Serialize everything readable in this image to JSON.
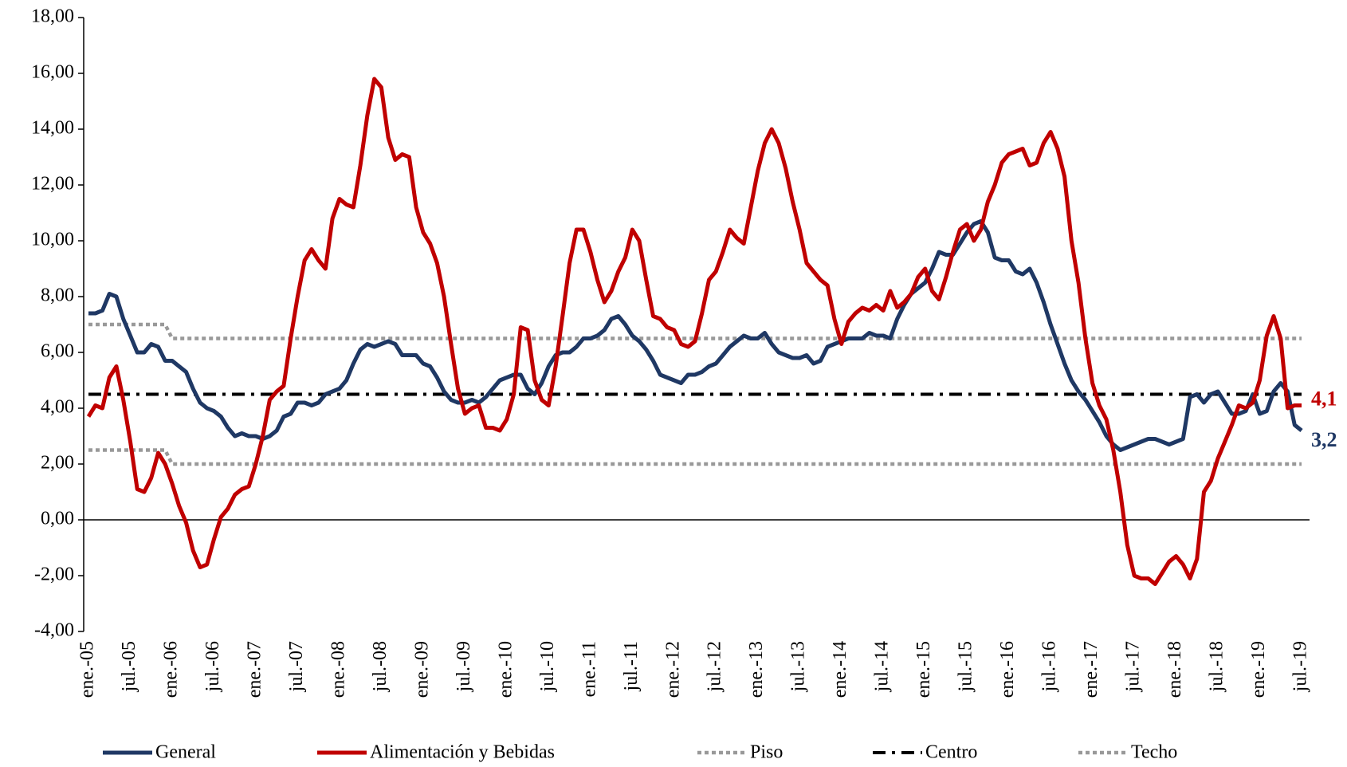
{
  "chart_data": {
    "type": "line",
    "categories": [
      "ene.-05",
      null,
      null,
      null,
      null,
      null,
      "jul.-05",
      null,
      null,
      null,
      null,
      null,
      "ene.-06",
      null,
      null,
      null,
      null,
      null,
      "jul.-06",
      null,
      null,
      null,
      null,
      null,
      "ene.-07",
      null,
      null,
      null,
      null,
      null,
      "jul.-07",
      null,
      null,
      null,
      null,
      null,
      "ene.-08",
      null,
      null,
      null,
      null,
      null,
      "jul.-08",
      null,
      null,
      null,
      null,
      null,
      "ene.-09",
      null,
      null,
      null,
      null,
      null,
      "jul.-09",
      null,
      null,
      null,
      null,
      null,
      "ene.-10",
      null,
      null,
      null,
      null,
      null,
      "jul.-10",
      null,
      null,
      null,
      null,
      null,
      "ene.-11",
      null,
      null,
      null,
      null,
      null,
      "jul.-11",
      null,
      null,
      null,
      null,
      null,
      "ene.-12",
      null,
      null,
      null,
      null,
      null,
      "jul.-12",
      null,
      null,
      null,
      null,
      null,
      "ene.-13",
      null,
      null,
      null,
      null,
      null,
      "jul.-13",
      null,
      null,
      null,
      null,
      null,
      "ene.-14",
      null,
      null,
      null,
      null,
      null,
      "jul.-14",
      null,
      null,
      null,
      null,
      null,
      "ene.-15",
      null,
      null,
      null,
      null,
      null,
      "jul.-15",
      null,
      null,
      null,
      null,
      null,
      "ene.-16",
      null,
      null,
      null,
      null,
      null,
      "jul.-16",
      null,
      null,
      null,
      null,
      null,
      "ene.-17",
      null,
      null,
      null,
      null,
      null,
      "jul.-17",
      null,
      null,
      null,
      null,
      null,
      "ene.-18",
      null,
      null,
      null,
      null,
      null,
      "jul.-18",
      null,
      null,
      null,
      null,
      null,
      "ene.-19",
      null,
      null,
      null,
      null,
      null,
      "jul.-19"
    ],
    "series": [
      {
        "name": "General",
        "color": "#1f3864",
        "style": "solid",
        "values": [
          7.4,
          7.4,
          7.5,
          8.1,
          8.0,
          7.2,
          6.6,
          6.0,
          6.0,
          6.3,
          6.2,
          5.7,
          5.7,
          5.5,
          5.3,
          4.7,
          4.2,
          4.0,
          3.9,
          3.7,
          3.3,
          3.0,
          3.1,
          3.0,
          3.0,
          2.9,
          3.0,
          3.2,
          3.7,
          3.8,
          4.2,
          4.2,
          4.1,
          4.2,
          4.5,
          4.6,
          4.7,
          5.0,
          5.6,
          6.1,
          6.3,
          6.2,
          6.3,
          6.4,
          6.3,
          5.9,
          5.9,
          5.9,
          5.6,
          5.5,
          5.1,
          4.6,
          4.3,
          4.2,
          4.2,
          4.3,
          4.2,
          4.4,
          4.7,
          5.0,
          5.1,
          5.2,
          5.2,
          4.7,
          4.5,
          4.9,
          5.5,
          5.9,
          6.0,
          6.0,
          6.2,
          6.5,
          6.5,
          6.6,
          6.8,
          7.2,
          7.3,
          7.0,
          6.6,
          6.4,
          6.1,
          5.7,
          5.2,
          5.1,
          5.0,
          4.9,
          5.2,
          5.2,
          5.3,
          5.5,
          5.6,
          5.9,
          6.2,
          6.4,
          6.6,
          6.5,
          6.5,
          6.7,
          6.3,
          6.0,
          5.9,
          5.8,
          5.8,
          5.9,
          5.6,
          5.7,
          6.2,
          6.3,
          6.4,
          6.5,
          6.5,
          6.5,
          6.7,
          6.6,
          6.6,
          6.5,
          7.2,
          7.7,
          8.1,
          8.3,
          8.5,
          9.0,
          9.6,
          9.5,
          9.5,
          9.9,
          10.3,
          10.6,
          10.7,
          10.3,
          9.4,
          9.3,
          9.3,
          8.9,
          8.8,
          9.0,
          8.5,
          7.8,
          7.0,
          6.3,
          5.6,
          5.0,
          4.6,
          4.3,
          3.9,
          3.5,
          3.0,
          2.7,
          2.5,
          2.6,
          2.7,
          2.8,
          2.9,
          2.9,
          2.8,
          2.7,
          2.8,
          2.9,
          4.4,
          4.5,
          4.2,
          4.5,
          4.6,
          4.2,
          3.8,
          3.8,
          3.9,
          4.5,
          3.8,
          3.9,
          4.6,
          4.9,
          4.6,
          3.4,
          3.2
        ]
      },
      {
        "name": "Alimentación y Bebidas",
        "color": "#c00000",
        "style": "solid",
        "values": [
          3.7,
          4.1,
          4.0,
          5.1,
          5.5,
          4.3,
          2.8,
          1.1,
          1.0,
          1.5,
          2.4,
          2.0,
          1.3,
          0.5,
          -0.1,
          -1.1,
          -1.7,
          -1.6,
          -0.7,
          0.1,
          0.4,
          0.9,
          1.1,
          1.2,
          2.0,
          3.0,
          4.3,
          4.6,
          4.8,
          6.5,
          8.0,
          9.3,
          9.7,
          9.3,
          9.0,
          10.8,
          11.5,
          11.3,
          11.2,
          12.7,
          14.5,
          15.8,
          15.5,
          13.7,
          12.9,
          13.1,
          13.0,
          11.2,
          10.3,
          9.9,
          9.2,
          8.0,
          6.3,
          4.7,
          3.8,
          4.0,
          4.1,
          3.3,
          3.3,
          3.2,
          3.6,
          4.5,
          6.9,
          6.8,
          5.0,
          4.3,
          4.1,
          5.5,
          7.3,
          9.2,
          10.4,
          10.4,
          9.6,
          8.6,
          7.8,
          8.2,
          8.9,
          9.4,
          10.4,
          10.0,
          8.6,
          7.3,
          7.2,
          6.9,
          6.8,
          6.3,
          6.2,
          6.4,
          7.4,
          8.6,
          8.9,
          9.6,
          10.4,
          10.1,
          9.9,
          11.2,
          12.5,
          13.5,
          14.0,
          13.5,
          12.6,
          11.4,
          10.4,
          9.2,
          8.9,
          8.6,
          8.4,
          7.2,
          6.3,
          7.1,
          7.4,
          7.6,
          7.5,
          7.7,
          7.5,
          8.2,
          7.6,
          7.8,
          8.1,
          8.7,
          9.0,
          8.2,
          7.9,
          8.7,
          9.6,
          10.4,
          10.6,
          10.0,
          10.4,
          11.4,
          12.0,
          12.8,
          13.1,
          13.2,
          13.3,
          12.7,
          12.8,
          13.5,
          13.9,
          13.3,
          12.3,
          10.0,
          8.5,
          6.5,
          4.9,
          4.1,
          3.6,
          2.5,
          1.0,
          -0.9,
          -2.0,
          -2.1,
          -2.1,
          -2.3,
          -1.9,
          -1.5,
          -1.3,
          -1.6,
          -2.1,
          -1.4,
          1.0,
          1.4,
          2.2,
          2.8,
          3.4,
          4.1,
          4.0,
          4.2,
          5.0,
          6.6,
          7.3,
          6.5,
          4.0,
          4.1,
          4.1
        ]
      },
      {
        "name": "Piso",
        "color": "#999999",
        "style": "dotted",
        "values": [
          2.5,
          2.5,
          2.5,
          2.5,
          2.5,
          2.5,
          2.5,
          2.5,
          2.5,
          2.5,
          2.5,
          2.5,
          2,
          2,
          2,
          2,
          2,
          2,
          2,
          2,
          2,
          2,
          2,
          2,
          2,
          2,
          2,
          2,
          2,
          2,
          2,
          2,
          2,
          2,
          2,
          2,
          2,
          2,
          2,
          2,
          2,
          2,
          2,
          2,
          2,
          2,
          2,
          2,
          2,
          2,
          2,
          2,
          2,
          2,
          2,
          2,
          2,
          2,
          2,
          2,
          2,
          2,
          2,
          2,
          2,
          2,
          2,
          2,
          2,
          2,
          2,
          2,
          2,
          2,
          2,
          2,
          2,
          2,
          2,
          2,
          2,
          2,
          2,
          2,
          2,
          2,
          2,
          2,
          2,
          2,
          2,
          2,
          2,
          2,
          2,
          2,
          2,
          2,
          2,
          2,
          2,
          2,
          2,
          2,
          2,
          2,
          2,
          2,
          2,
          2,
          2,
          2,
          2,
          2,
          2,
          2,
          2,
          2,
          2,
          2,
          2,
          2,
          2,
          2,
          2,
          2,
          2,
          2,
          2,
          2,
          2,
          2,
          2,
          2,
          2,
          2,
          2,
          2,
          2,
          2,
          2,
          2,
          2,
          2,
          2,
          2,
          2,
          2,
          2,
          2,
          2,
          2,
          2,
          2,
          2,
          2,
          2,
          2,
          2,
          2,
          2,
          2,
          2,
          2,
          2,
          2,
          2,
          2,
          2,
          2,
          2,
          2,
          2,
          2,
          2
        ]
      },
      {
        "name": "Centro",
        "color": "#000000",
        "style": "dashdot",
        "values": [
          4.5,
          4.5,
          4.5,
          4.5,
          4.5,
          4.5,
          4.5,
          4.5,
          4.5,
          4.5,
          4.5,
          4.5,
          4.5,
          4.5,
          4.5,
          4.5,
          4.5,
          4.5,
          4.5,
          4.5,
          4.5,
          4.5,
          4.5,
          4.5,
          4.5,
          4.5,
          4.5,
          4.5,
          4.5,
          4.5,
          4.5,
          4.5,
          4.5,
          4.5,
          4.5,
          4.5,
          4.5,
          4.5,
          4.5,
          4.5,
          4.5,
          4.5,
          4.5,
          4.5,
          4.5,
          4.5,
          4.5,
          4.5,
          4.5,
          4.5,
          4.5,
          4.5,
          4.5,
          4.5,
          4.5,
          4.5,
          4.5,
          4.5,
          4.5,
          4.5,
          4.5,
          4.5,
          4.5,
          4.5,
          4.5,
          4.5,
          4.5,
          4.5,
          4.5,
          4.5,
          4.5,
          4.5,
          4.5,
          4.5,
          4.5,
          4.5,
          4.5,
          4.5,
          4.5,
          4.5,
          4.5,
          4.5,
          4.5,
          4.5,
          4.5,
          4.5,
          4.5,
          4.5,
          4.5,
          4.5,
          4.5,
          4.5,
          4.5,
          4.5,
          4.5,
          4.5,
          4.5,
          4.5,
          4.5,
          4.5,
          4.5,
          4.5,
          4.5,
          4.5,
          4.5,
          4.5,
          4.5,
          4.5,
          4.5,
          4.5,
          4.5,
          4.5,
          4.5,
          4.5,
          4.5,
          4.5,
          4.5,
          4.5,
          4.5,
          4.5,
          4.5,
          4.5,
          4.5,
          4.5,
          4.5,
          4.5,
          4.5,
          4.5,
          4.5,
          4.5,
          4.5,
          4.5,
          4.5,
          4.5,
          4.5,
          4.5,
          4.5,
          4.5,
          4.5,
          4.5,
          4.5,
          4.5,
          4.5,
          4.5,
          4.5,
          4.5,
          4.5,
          4.5,
          4.5,
          4.5,
          4.5,
          4.5,
          4.5,
          4.5,
          4.5,
          4.5,
          4.5,
          4.5,
          4.5,
          4.5,
          4.5,
          4.5,
          4.5,
          4.5,
          4.5,
          4.5,
          4.5,
          4.5,
          4.5,
          4.5,
          4.5,
          4.5,
          4.5,
          4.5,
          4.5
        ]
      },
      {
        "name": "Techo",
        "color": "#999999",
        "style": "dotted",
        "values": [
          7,
          7,
          7,
          7,
          7,
          7,
          7,
          7,
          7,
          7,
          7,
          7,
          6.5,
          6.5,
          6.5,
          6.5,
          6.5,
          6.5,
          6.5,
          6.5,
          6.5,
          6.5,
          6.5,
          6.5,
          6.5,
          6.5,
          6.5,
          6.5,
          6.5,
          6.5,
          6.5,
          6.5,
          6.5,
          6.5,
          6.5,
          6.5,
          6.5,
          6.5,
          6.5,
          6.5,
          6.5,
          6.5,
          6.5,
          6.5,
          6.5,
          6.5,
          6.5,
          6.5,
          6.5,
          6.5,
          6.5,
          6.5,
          6.5,
          6.5,
          6.5,
          6.5,
          6.5,
          6.5,
          6.5,
          6.5,
          6.5,
          6.5,
          6.5,
          6.5,
          6.5,
          6.5,
          6.5,
          6.5,
          6.5,
          6.5,
          6.5,
          6.5,
          6.5,
          6.5,
          6.5,
          6.5,
          6.5,
          6.5,
          6.5,
          6.5,
          6.5,
          6.5,
          6.5,
          6.5,
          6.5,
          6.5,
          6.5,
          6.5,
          6.5,
          6.5,
          6.5,
          6.5,
          6.5,
          6.5,
          6.5,
          6.5,
          6.5,
          6.5,
          6.5,
          6.5,
          6.5,
          6.5,
          6.5,
          6.5,
          6.5,
          6.5,
          6.5,
          6.5,
          6.5,
          6.5,
          6.5,
          6.5,
          6.5,
          6.5,
          6.5,
          6.5,
          6.5,
          6.5,
          6.5,
          6.5,
          6.5,
          6.5,
          6.5,
          6.5,
          6.5,
          6.5,
          6.5,
          6.5,
          6.5,
          6.5,
          6.5,
          6.5,
          6.5,
          6.5,
          6.5,
          6.5,
          6.5,
          6.5,
          6.5,
          6.5,
          6.5,
          6.5,
          6.5,
          6.5,
          6.5,
          6.5,
          6.5,
          6.5,
          6.5,
          6.5,
          6.5,
          6.5,
          6.5,
          6.5,
          6.5,
          6.5,
          6.5,
          6.5,
          6.5,
          6.5,
          6.5,
          6.5,
          6.5,
          6.5,
          6.5,
          6.5,
          6.5,
          6.5,
          6.5,
          6.5,
          6.5,
          6.5,
          6.5,
          6.5,
          6.5
        ]
      }
    ],
    "ylim": [
      -4,
      18
    ],
    "yticks": [
      {
        "value": -4,
        "label": "-4,00"
      },
      {
        "value": -2,
        "label": "-2,00"
      },
      {
        "value": 0,
        "label": "0,00"
      },
      {
        "value": 2,
        "label": "2,00"
      },
      {
        "value": 4,
        "label": "4,00"
      },
      {
        "value": 6,
        "label": "6,00"
      },
      {
        "value": 8,
        "label": "8,00"
      },
      {
        "value": 10,
        "label": "10,00"
      },
      {
        "value": 12,
        "label": "12,00"
      },
      {
        "value": 14,
        "label": "14,00"
      },
      {
        "value": 16,
        "label": "16,00"
      },
      {
        "value": 18,
        "label": "18,00"
      }
    ],
    "annotations": [
      {
        "text": "4,1",
        "color": "#c00000",
        "series": 1
      },
      {
        "text": "3,2",
        "color": "#1f3864",
        "series": 0
      }
    ],
    "legend": "bottom",
    "grid": false
  }
}
